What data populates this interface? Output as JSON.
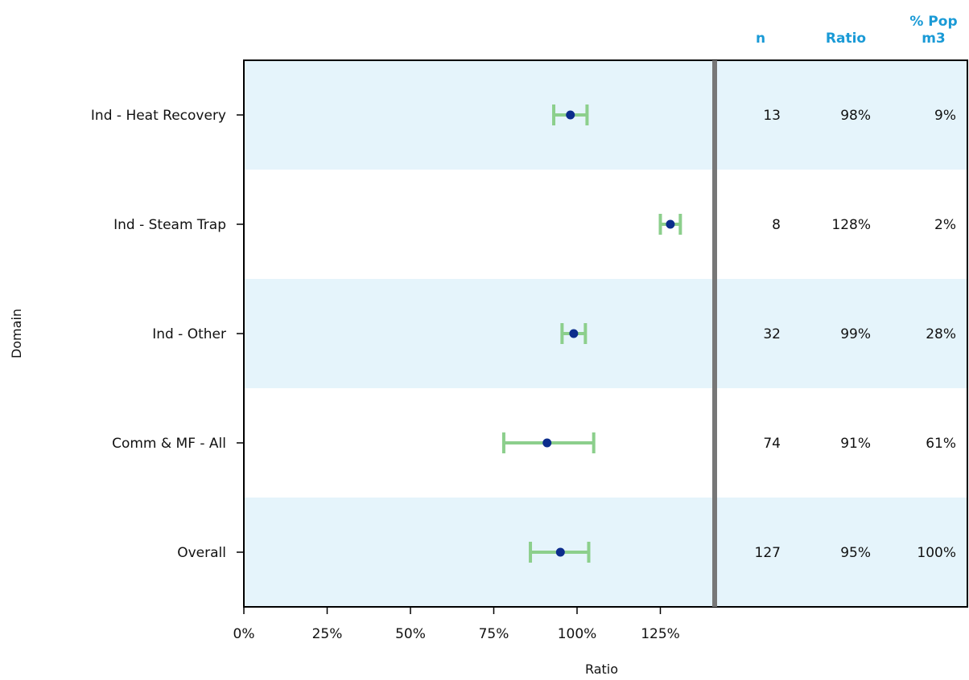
{
  "chart_data": {
    "type": "forest",
    "xlabel": "Ratio",
    "ylabel": "Domain",
    "xlim": [
      0,
      140
    ],
    "x_ticks": [
      0,
      25,
      50,
      75,
      100,
      125
    ],
    "x_tick_labels": [
      "0%",
      "25%",
      "50%",
      "75%",
      "100%",
      "125%"
    ],
    "column_headers": [
      "n",
      "Ratio",
      "% Pop\nm3"
    ],
    "rows": [
      {
        "domain": "Ind - Heat Recovery",
        "ratio": 98,
        "ci_low": 93,
        "ci_high": 103,
        "n": "13",
        "ratio_label": "98%",
        "pop_label": "9%"
      },
      {
        "domain": "Ind - Steam Trap",
        "ratio": 128,
        "ci_low": 125,
        "ci_high": 131,
        "n": "8",
        "ratio_label": "128%",
        "pop_label": "2%"
      },
      {
        "domain": "Ind - Other",
        "ratio": 99,
        "ci_low": 95.5,
        "ci_high": 102.5,
        "n": "32",
        "ratio_label": "99%",
        "pop_label": "28%"
      },
      {
        "domain": "Comm & MF - All",
        "ratio": 91,
        "ci_low": 78,
        "ci_high": 105,
        "n": "74",
        "ratio_label": "91%",
        "pop_label": "61%"
      },
      {
        "domain": "Overall",
        "ratio": 95,
        "ci_low": 86,
        "ci_high": 103.5,
        "n": "127",
        "ratio_label": "95%",
        "pop_label": "100%"
      }
    ],
    "colors": {
      "band": "#e5f4fb",
      "point": "#0c2d8c",
      "ci": "#8ccf8c",
      "header": "#1a9ad6",
      "divider": "#777777"
    }
  }
}
